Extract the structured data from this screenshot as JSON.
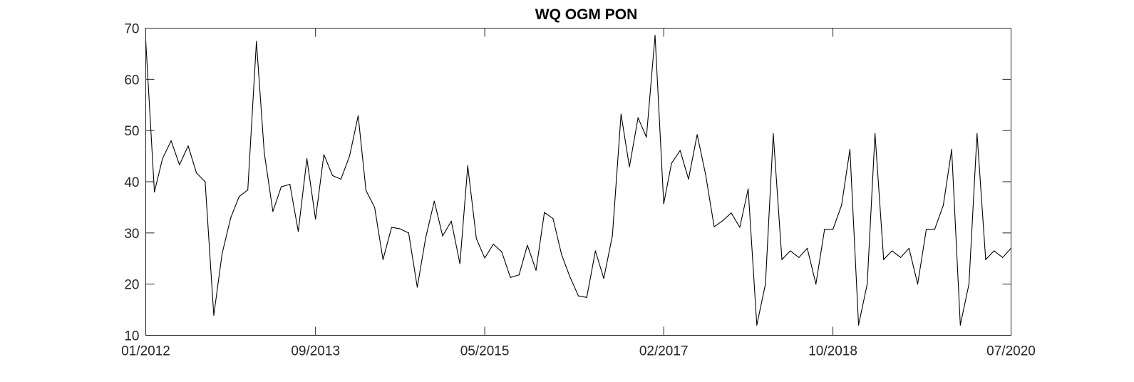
{
  "chart_data": {
    "type": "line",
    "title": "WQ OGM PON",
    "xlabel": "",
    "ylabel": "",
    "ylim": [
      10,
      70
    ],
    "yticks": [
      10,
      20,
      30,
      40,
      50,
      60,
      70
    ],
    "xlim": [
      "2012-01-01",
      "2020-07-01"
    ],
    "xticks": [
      {
        "date": "2012-01-01",
        "label": "01/2012"
      },
      {
        "date": "2013-09-01",
        "label": "09/2013"
      },
      {
        "date": "2015-05-01",
        "label": "05/2015"
      },
      {
        "date": "2017-02-01",
        "label": "02/2017"
      },
      {
        "date": "2018-10-01",
        "label": "10/2018"
      },
      {
        "date": "2020-07-01",
        "label": "07/2020"
      }
    ],
    "grid": false,
    "line_color": "#000000",
    "series": [
      {
        "x": [
          "2012-01-01",
          "2012-02-01",
          "2012-03-01",
          "2012-04-01",
          "2012-05-01",
          "2012-06-01",
          "2012-07-01",
          "2012-08-01",
          "2012-09-01",
          "2012-10-01",
          "2012-11-01",
          "2012-12-01",
          "2013-01-01",
          "2013-02-01",
          "2013-03-01",
          "2013-04-01",
          "2013-05-01",
          "2013-06-01",
          "2013-07-01",
          "2013-08-01",
          "2013-09-01",
          "2013-10-01",
          "2013-11-01",
          "2013-12-01",
          "2014-01-01",
          "2014-02-01",
          "2014-03-01",
          "2014-04-01",
          "2014-05-01",
          "2014-06-01",
          "2014-07-01",
          "2014-08-01",
          "2014-09-01",
          "2014-10-01",
          "2014-11-01",
          "2014-12-01",
          "2015-01-01",
          "2015-02-01",
          "2015-03-01",
          "2015-04-01",
          "2015-05-01",
          "2015-06-01",
          "2015-07-01",
          "2015-08-01",
          "2015-09-01",
          "2015-10-01",
          "2015-11-01",
          "2015-12-01",
          "2016-01-01",
          "2016-02-01",
          "2016-03-01",
          "2016-04-01",
          "2016-05-01",
          "2016-06-01",
          "2016-07-01",
          "2016-08-01",
          "2016-09-01",
          "2016-10-01",
          "2016-11-01",
          "2016-12-01",
          "2017-01-01",
          "2017-02-01",
          "2017-03-01",
          "2017-04-01",
          "2017-05-01",
          "2017-06-01",
          "2017-07-01",
          "2017-08-01",
          "2017-09-01",
          "2017-10-01",
          "2017-11-01",
          "2017-12-01",
          "2018-01-01",
          "2018-02-01",
          "2018-03-01",
          "2018-04-01",
          "2018-05-01",
          "2018-06-01",
          "2018-07-01",
          "2018-08-01",
          "2018-09-01",
          "2018-10-01",
          "2018-11-01",
          "2018-12-01",
          "2019-01-01",
          "2019-02-01",
          "2019-03-01",
          "2019-04-01",
          "2019-05-01",
          "2019-06-01",
          "2019-07-01",
          "2019-08-01",
          "2019-09-01",
          "2019-10-01",
          "2019-11-01",
          "2019-12-01",
          "2020-01-01",
          "2020-02-01",
          "2020-03-01",
          "2020-04-01",
          "2020-05-01",
          "2020-06-01",
          "2020-07-01"
        ],
        "y": [
          67.5,
          38.0,
          44.5,
          48.0,
          43.3,
          47.0,
          41.7,
          40.0,
          13.9,
          26.0,
          33.0,
          37.1,
          38.4,
          67.4,
          45.7,
          34.2,
          39.0,
          39.5,
          30.3,
          44.5,
          32.7,
          45.3,
          41.2,
          40.5,
          45.0,
          52.9,
          38.3,
          35.0,
          24.8,
          31.1,
          30.8,
          30.0,
          19.4,
          29.0,
          36.2,
          29.4,
          32.3,
          24.0,
          43.1,
          28.9,
          25.1,
          27.8,
          26.3,
          21.3,
          21.8,
          27.6,
          22.7,
          34.0,
          32.8,
          25.7,
          21.5,
          17.7,
          17.4,
          26.5,
          21.1,
          29.5,
          53.2,
          42.9,
          52.5,
          48.7,
          68.6,
          35.7,
          43.6,
          46.1,
          40.5,
          49.2,
          41.5,
          31.2,
          32.4,
          33.9,
          31.1,
          38.6,
          12.0,
          20.0,
          49.4,
          24.8,
          26.5,
          25.2,
          27.0,
          20.0,
          30.7,
          30.7,
          35.4,
          46.3,
          12.0,
          20.0,
          49.4,
          24.8,
          26.5,
          25.2,
          27.0,
          20.0,
          30.7,
          30.7,
          35.4,
          46.3,
          12.0,
          20.0,
          49.4,
          24.8,
          26.5,
          25.2,
          27.0
        ]
      }
    ]
  }
}
